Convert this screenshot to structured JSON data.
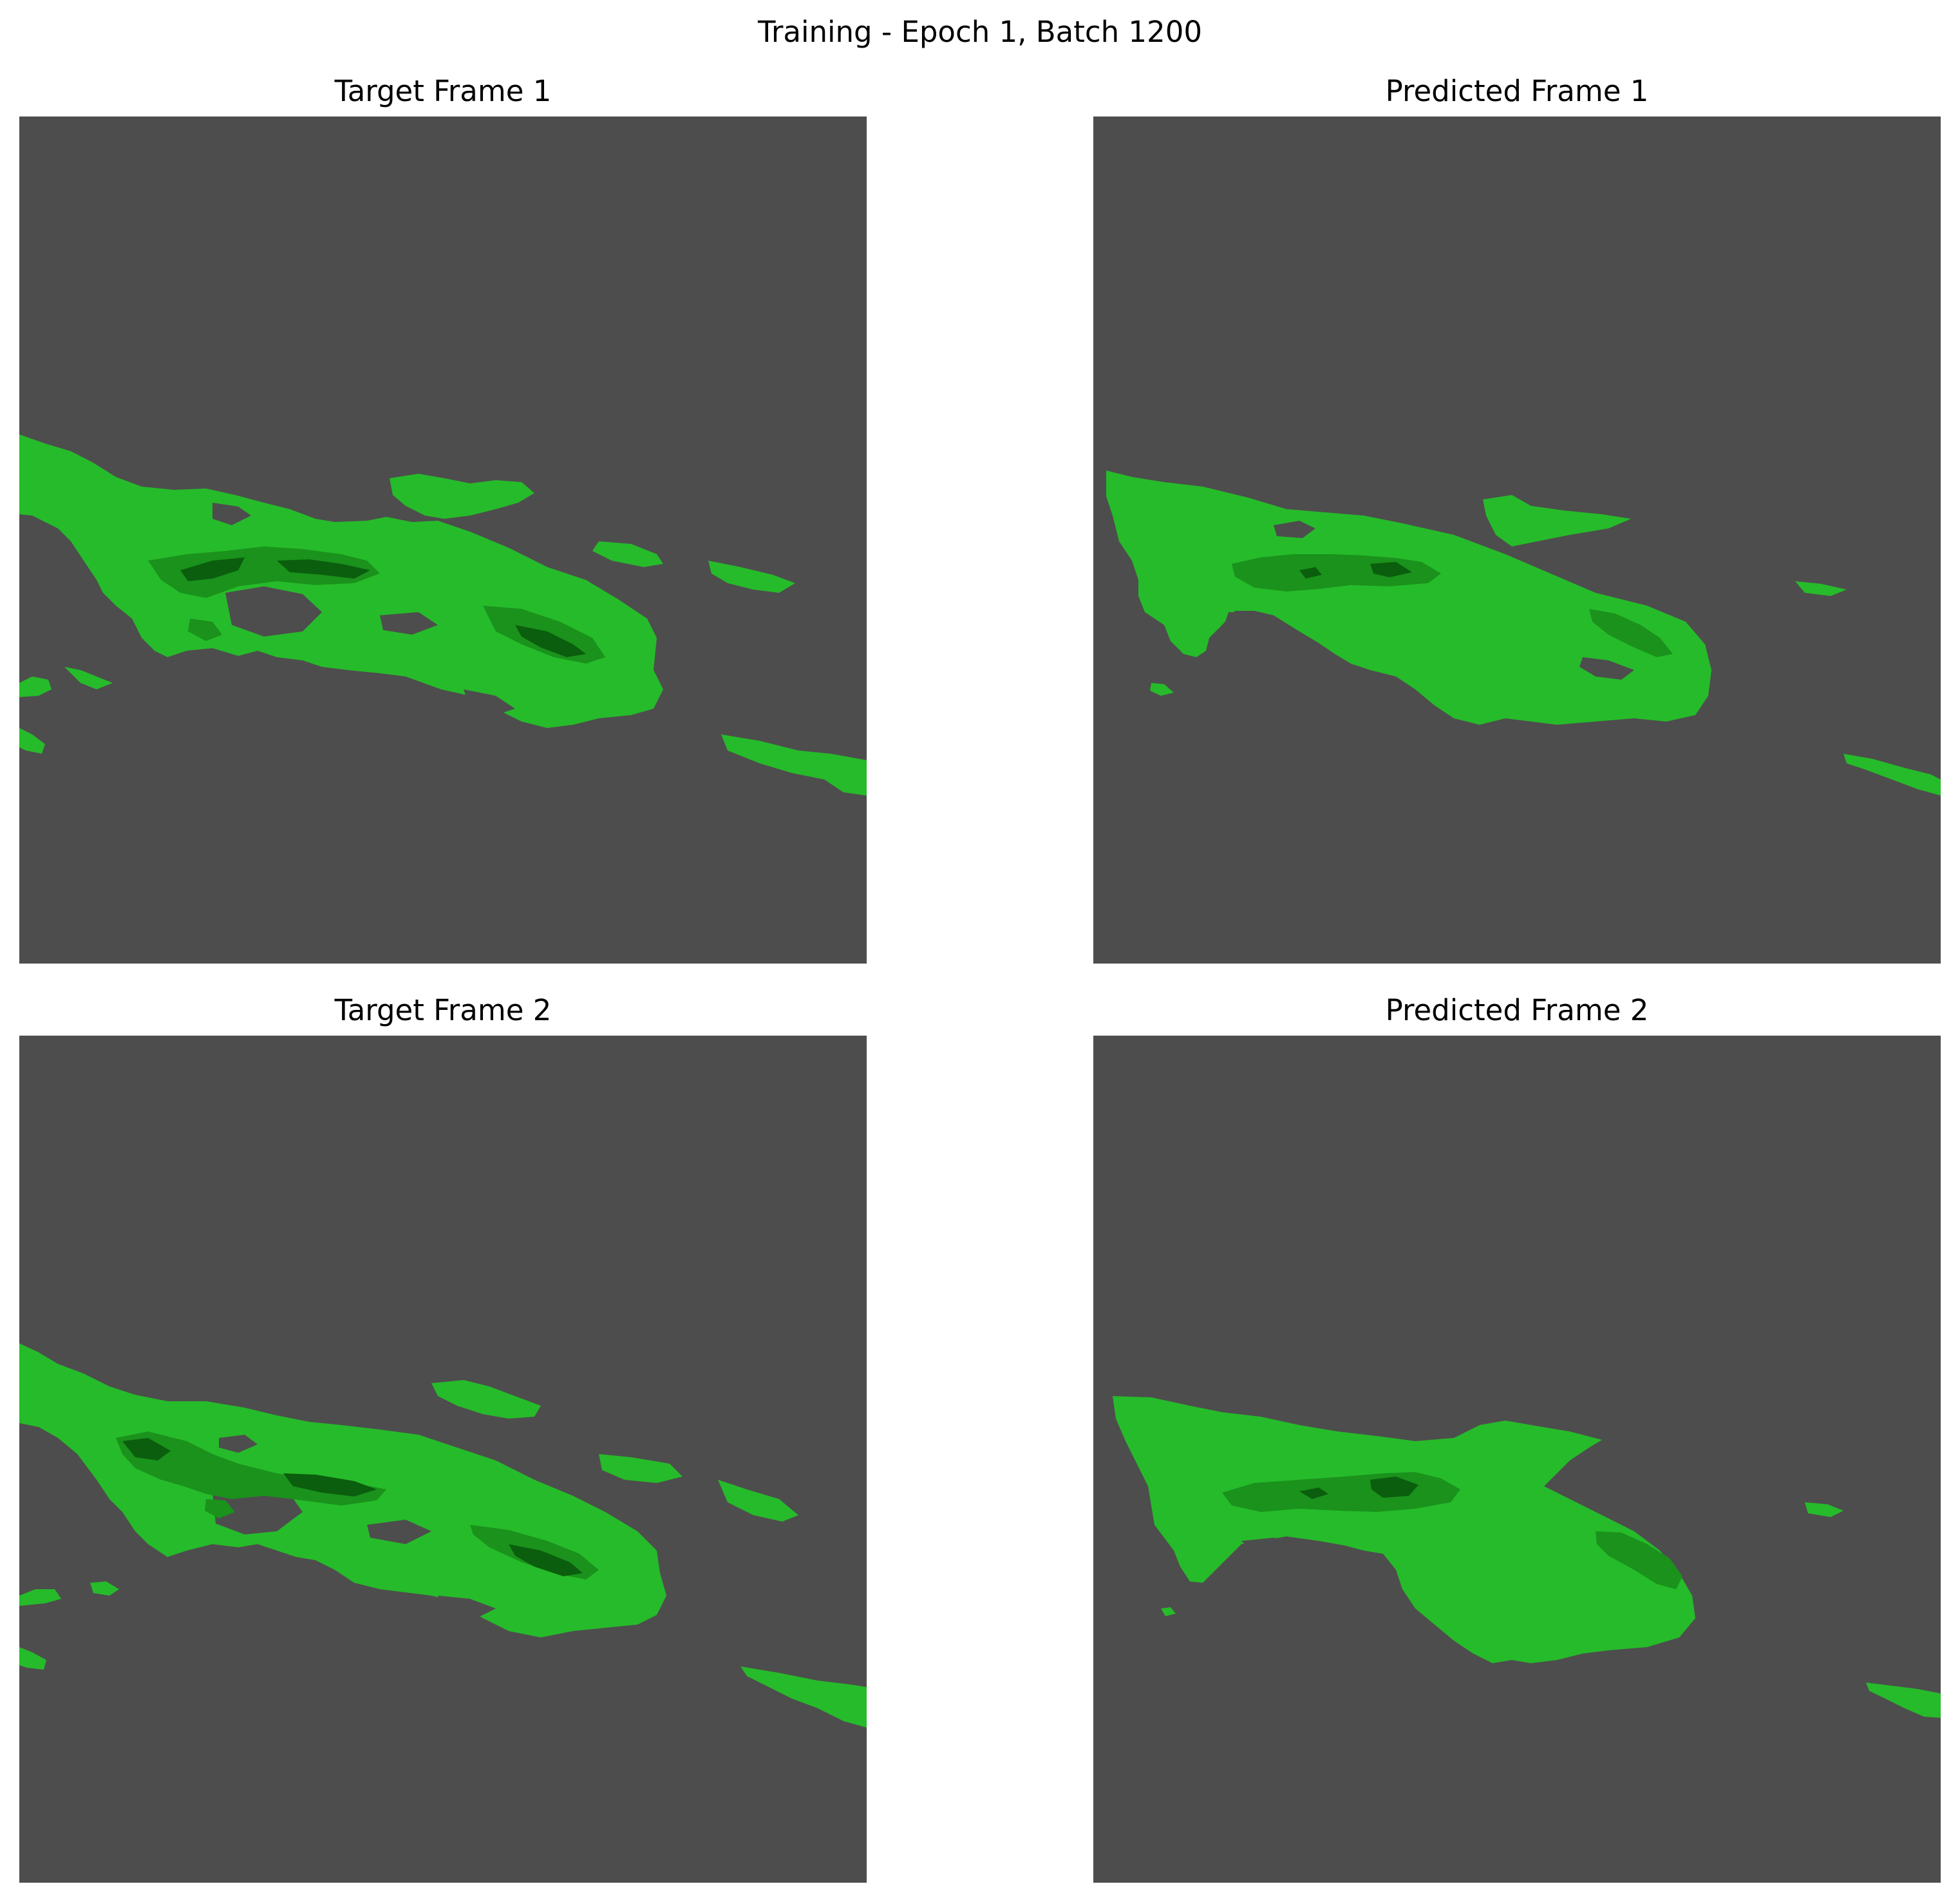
{
  "figure": {
    "title": "Training - Epoch 1, Batch 1200"
  },
  "panels": [
    {
      "title": "Target Frame 1"
    },
    {
      "title": "Predicted Frame 1"
    },
    {
      "title": "Target Frame 2"
    },
    {
      "title": "Predicted Frame 2"
    }
  ],
  "colors": {
    "background": "#4d4d4d",
    "level_1": "#26bb2a",
    "level_2": "#1a921c",
    "level_3": "#0b5e0d"
  }
}
